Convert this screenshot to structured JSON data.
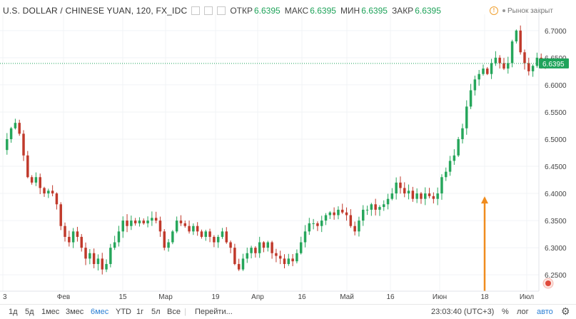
{
  "header": {
    "title": "U.S. DOLLAR / CHINESE YUAN, 120, FX_IDC",
    "open_label": "ОТКР",
    "open_value": "6.6395",
    "high_label": "МАКС",
    "high_value": "6.6395",
    "low_label": "МИН",
    "low_value": "6.6395",
    "close_label": "ЗАКР",
    "close_value": "6.6395",
    "market_status": "Рынок закрыт"
  },
  "price_badge": "6.6395",
  "chart_data": {
    "type": "candlestick",
    "title": "U.S. DOLLAR / CHINESE YUAN, 120, FX_IDC",
    "last_price": 6.6395,
    "ylim": [
      6.22,
      6.73
    ],
    "y_ticks": [
      "6.7000",
      "6.6500",
      "6.6000",
      "6.5500",
      "6.5000",
      "6.4500",
      "6.4000",
      "6.3500",
      "6.3000",
      "6.2500"
    ],
    "x_ticks": [
      "3",
      "Фев",
      "15",
      "Мар",
      "19",
      "Апр",
      "16",
      "Май",
      "16",
      "Июн",
      "18",
      "Июл"
    ],
    "close_path": [
      [
        0,
        6.48
      ],
      [
        2,
        6.5
      ],
      [
        4,
        6.52
      ],
      [
        6,
        6.53
      ],
      [
        8,
        6.51
      ],
      [
        10,
        6.47
      ],
      [
        12,
        6.43
      ],
      [
        14,
        6.42
      ],
      [
        16,
        6.43
      ],
      [
        18,
        6.41
      ],
      [
        20,
        6.4
      ],
      [
        22,
        6.405
      ],
      [
        24,
        6.4
      ],
      [
        26,
        6.38
      ],
      [
        28,
        6.34
      ],
      [
        30,
        6.32
      ],
      [
        32,
        6.31
      ],
      [
        34,
        6.33
      ],
      [
        36,
        6.32
      ],
      [
        38,
        6.3
      ],
      [
        40,
        6.28
      ],
      [
        42,
        6.29
      ],
      [
        44,
        6.27
      ],
      [
        46,
        6.28
      ],
      [
        48,
        6.26
      ],
      [
        50,
        6.27
      ],
      [
        52,
        6.3
      ],
      [
        54,
        6.31
      ],
      [
        56,
        6.33
      ],
      [
        58,
        6.35
      ],
      [
        60,
        6.34
      ],
      [
        62,
        6.35
      ],
      [
        64,
        6.345
      ],
      [
        66,
        6.35
      ],
      [
        68,
        6.345
      ],
      [
        70,
        6.35
      ],
      [
        72,
        6.355
      ],
      [
        74,
        6.35
      ],
      [
        76,
        6.33
      ],
      [
        78,
        6.3
      ],
      [
        80,
        6.31
      ],
      [
        82,
        6.33
      ],
      [
        84,
        6.35
      ],
      [
        86,
        6.345
      ],
      [
        88,
        6.34
      ],
      [
        90,
        6.33
      ],
      [
        92,
        6.34
      ],
      [
        94,
        6.33
      ],
      [
        96,
        6.32
      ],
      [
        98,
        6.33
      ],
      [
        100,
        6.32
      ],
      [
        102,
        6.31
      ],
      [
        104,
        6.32
      ],
      [
        106,
        6.33
      ],
      [
        108,
        6.31
      ],
      [
        110,
        6.3
      ],
      [
        112,
        6.27
      ],
      [
        114,
        6.26
      ],
      [
        116,
        6.28
      ],
      [
        118,
        6.29
      ],
      [
        120,
        6.3
      ],
      [
        122,
        6.29
      ],
      [
        124,
        6.31
      ],
      [
        126,
        6.3
      ],
      [
        128,
        6.31
      ],
      [
        130,
        6.29
      ],
      [
        132,
        6.285
      ],
      [
        134,
        6.28
      ],
      [
        136,
        6.27
      ],
      [
        138,
        6.28
      ],
      [
        140,
        6.275
      ],
      [
        142,
        6.29
      ],
      [
        144,
        6.31
      ],
      [
        146,
        6.33
      ],
      [
        148,
        6.345
      ],
      [
        150,
        6.345
      ],
      [
        152,
        6.34
      ],
      [
        154,
        6.35
      ],
      [
        156,
        6.36
      ],
      [
        158,
        6.365
      ],
      [
        160,
        6.36
      ],
      [
        162,
        6.37
      ],
      [
        164,
        6.365
      ],
      [
        166,
        6.36
      ],
      [
        168,
        6.34
      ],
      [
        170,
        6.33
      ],
      [
        172,
        6.35
      ],
      [
        174,
        6.37
      ],
      [
        176,
        6.37
      ],
      [
        178,
        6.38
      ],
      [
        180,
        6.37
      ],
      [
        182,
        6.375
      ],
      [
        184,
        6.38
      ],
      [
        186,
        6.39
      ],
      [
        188,
        6.4
      ],
      [
        190,
        6.42
      ],
      [
        192,
        6.41
      ],
      [
        194,
        6.4
      ],
      [
        196,
        6.405
      ],
      [
        198,
        6.39
      ],
      [
        200,
        6.4
      ],
      [
        202,
        6.39
      ],
      [
        204,
        6.4
      ],
      [
        206,
        6.395
      ],
      [
        208,
        6.39
      ],
      [
        210,
        6.4
      ],
      [
        212,
        6.43
      ],
      [
        214,
        6.44
      ],
      [
        216,
        6.46
      ],
      [
        218,
        6.47
      ],
      [
        220,
        6.5
      ],
      [
        222,
        6.52
      ],
      [
        224,
        6.56
      ],
      [
        226,
        6.59
      ],
      [
        228,
        6.61
      ],
      [
        230,
        6.62
      ],
      [
        232,
        6.63
      ],
      [
        234,
        6.62
      ],
      [
        236,
        6.64
      ],
      [
        238,
        6.65
      ],
      [
        240,
        6.64
      ],
      [
        242,
        6.63
      ],
      [
        244,
        6.64
      ],
      [
        246,
        6.68
      ],
      [
        248,
        6.7
      ],
      [
        250,
        6.66
      ],
      [
        252,
        6.64
      ],
      [
        254,
        6.625
      ],
      [
        256,
        6.635
      ],
      [
        258,
        6.65
      ],
      [
        260,
        6.64
      ],
      [
        262,
        6.6395
      ]
    ],
    "annotation": "arrow"
  },
  "toolbar": {
    "ranges": [
      "1д",
      "5д",
      "1мес",
      "3мес",
      "6мес",
      "YTD",
      "1г",
      "5л",
      "Все"
    ],
    "active_range": "6мес",
    "goto_label": "Перейти...",
    "time": "23:03:40 (UTC+3)",
    "percent": "%",
    "log": "лог",
    "auto": "авто",
    "gear_icon": "gear-icon"
  },
  "colors": {
    "up": "#26a65b",
    "down": "#c0392b",
    "price_line": "#1fa35a",
    "arrow": "#f08c1e",
    "badge": "#e0493a"
  }
}
